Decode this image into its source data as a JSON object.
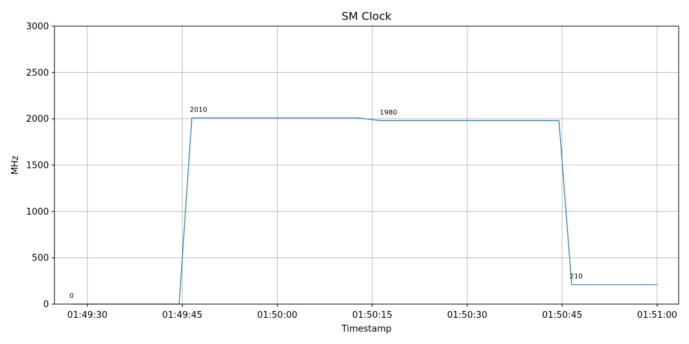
{
  "chart_data": {
    "type": "line",
    "title": "SM Clock",
    "xlabel": "Timestamp",
    "ylabel": "MHz",
    "ylim": [
      0,
      3000
    ],
    "xlim": [
      "01:49:24.8",
      "01:51:03.4"
    ],
    "yticks": [
      0,
      500,
      1000,
      1500,
      2000,
      2500,
      3000
    ],
    "xticks": [
      "01:49:30",
      "01:49:45",
      "01:50:00",
      "01:50:15",
      "01:50:30",
      "01:50:45",
      "01:51:00"
    ],
    "grid": true,
    "color": "#1f77b4",
    "series": [
      {
        "x": [
          "01:49:27.5",
          "01:49:44.5",
          "01:49:46.5",
          "01:50:12.5",
          "01:50:16.5",
          "01:50:44.5",
          "01:50:46.5",
          "01:51:00.0"
        ],
        "values": [
          0,
          0,
          2010,
          2010,
          1980,
          1980,
          210,
          210
        ]
      }
    ],
    "annotations": [
      {
        "x": "01:49:27.5",
        "y": 0,
        "text": "0"
      },
      {
        "x": "01:49:46.5",
        "y": 2010,
        "text": "2010"
      },
      {
        "x": "01:50:16.5",
        "y": 1980,
        "text": "1980"
      },
      {
        "x": "01:50:46.5",
        "y": 210,
        "text": "210"
      }
    ]
  }
}
